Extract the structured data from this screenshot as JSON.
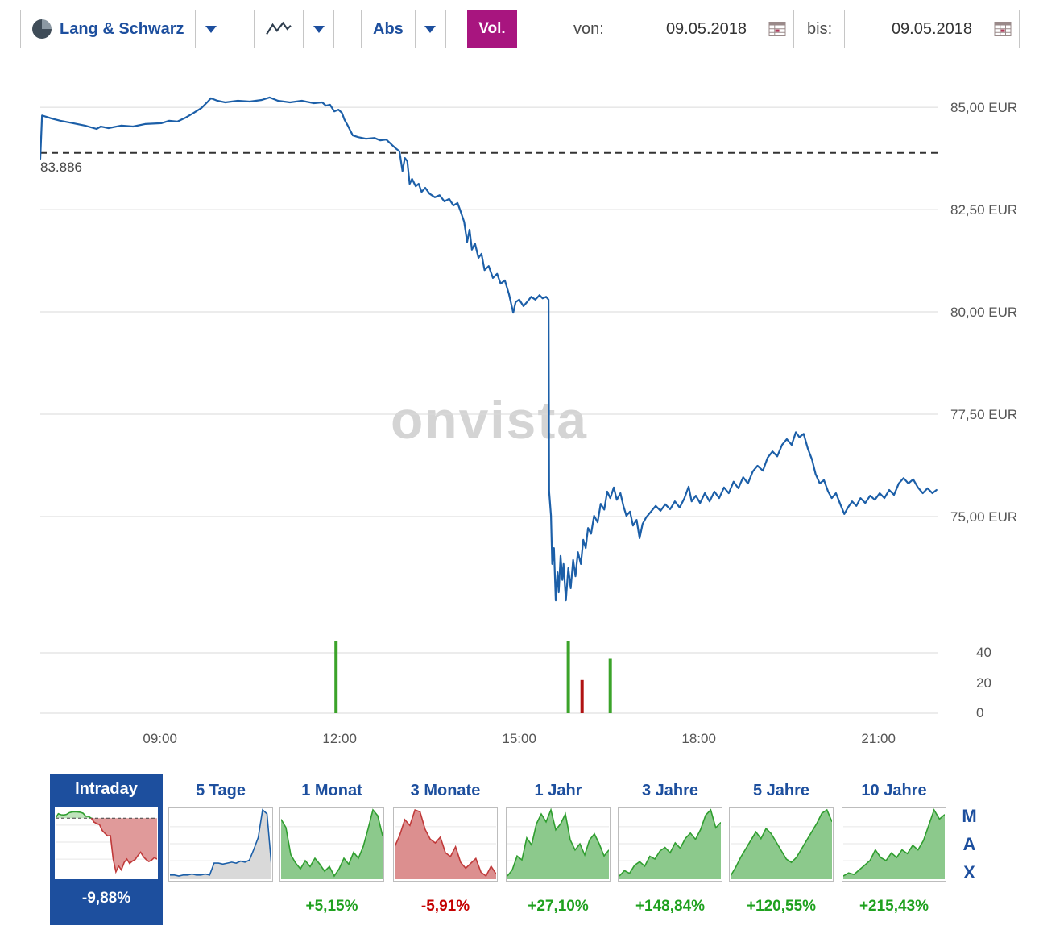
{
  "toolbar": {
    "exchange": {
      "label": "Lang & Schwarz"
    },
    "scale_mode": {
      "label": "Abs"
    },
    "volume_button": {
      "label": "Vol."
    },
    "date_range": {
      "von_label": "von:",
      "bis_label": "bis:",
      "from": "09.05.2018",
      "to": "09.05.2018"
    }
  },
  "watermark": "onvista",
  "max_label": "MAX",
  "colors": {
    "line": "#1c5fa8",
    "grid": "#dadada",
    "ref": "#333333",
    "vol_up": "#3ba32a",
    "vol_down": "#b01212",
    "accent": "#1d4f9e",
    "magenta": "#a8157f",
    "pct_up": "#1fa11f",
    "pct_down": "#c40000",
    "watermark": "#d4d4d4"
  },
  "chart_data": {
    "type": "line",
    "unit": "EUR",
    "x_domain": [
      7.0,
      22.0
    ],
    "y_domain": [
      72.46,
      85.75
    ],
    "y_gridlines": [
      85,
      82.5,
      80,
      77.5,
      75
    ],
    "y_labels": [
      "85,00 EUR",
      "82,50 EUR",
      "80,00 EUR",
      "77,50 EUR",
      "75,00 EUR"
    ],
    "x_ticks": [
      9,
      12,
      15,
      18,
      21
    ],
    "x_labels": [
      "09:00",
      "12:00",
      "15:00",
      "18:00",
      "21:00"
    ],
    "previous_close": 83.886,
    "previous_close_label": "83.886",
    "series": [
      [
        7.0,
        83.74
      ],
      [
        7.03,
        84.8
      ],
      [
        7.2,
        84.72
      ],
      [
        7.34,
        84.67
      ],
      [
        7.55,
        84.61
      ],
      [
        7.75,
        84.55
      ],
      [
        7.94,
        84.47
      ],
      [
        8.01,
        84.53
      ],
      [
        8.14,
        84.49
      ],
      [
        8.35,
        84.55
      ],
      [
        8.55,
        84.53
      ],
      [
        8.75,
        84.59
      ],
      [
        9.02,
        84.61
      ],
      [
        9.15,
        84.67
      ],
      [
        9.29,
        84.65
      ],
      [
        9.42,
        84.74
      ],
      [
        9.56,
        84.86
      ],
      [
        9.69,
        84.98
      ],
      [
        9.8,
        85.14
      ],
      [
        9.85,
        85.22
      ],
      [
        9.96,
        85.16
      ],
      [
        10.09,
        85.12
      ],
      [
        10.3,
        85.16
      ],
      [
        10.5,
        85.14
      ],
      [
        10.7,
        85.18
      ],
      [
        10.83,
        85.24
      ],
      [
        10.97,
        85.16
      ],
      [
        11.17,
        85.12
      ],
      [
        11.37,
        85.16
      ],
      [
        11.57,
        85.1
      ],
      [
        11.71,
        85.12
      ],
      [
        11.77,
        85.04
      ],
      [
        11.84,
        85.06
      ],
      [
        11.91,
        84.9
      ],
      [
        11.98,
        84.94
      ],
      [
        12.04,
        84.86
      ],
      [
        12.08,
        84.7
      ],
      [
        12.13,
        84.57
      ],
      [
        12.22,
        84.31
      ],
      [
        12.31,
        84.27
      ],
      [
        12.44,
        84.23
      ],
      [
        12.58,
        84.25
      ],
      [
        12.68,
        84.19
      ],
      [
        12.78,
        84.21
      ],
      [
        12.88,
        84.07
      ],
      [
        12.95,
        83.98
      ],
      [
        13.0,
        83.92
      ],
      [
        13.05,
        83.44
      ],
      [
        13.09,
        83.76
      ],
      [
        13.13,
        83.68
      ],
      [
        13.17,
        83.13
      ],
      [
        13.21,
        83.25
      ],
      [
        13.27,
        83.07
      ],
      [
        13.32,
        83.13
      ],
      [
        13.37,
        82.93
      ],
      [
        13.43,
        83.03
      ],
      [
        13.5,
        82.89
      ],
      [
        13.59,
        82.8
      ],
      [
        13.67,
        82.85
      ],
      [
        13.75,
        82.7
      ],
      [
        13.83,
        82.76
      ],
      [
        13.9,
        82.6
      ],
      [
        13.97,
        82.66
      ],
      [
        14.02,
        82.46
      ],
      [
        14.08,
        82.2
      ],
      [
        14.13,
        81.71
      ],
      [
        14.17,
        82.01
      ],
      [
        14.21,
        81.52
      ],
      [
        14.26,
        81.67
      ],
      [
        14.32,
        81.32
      ],
      [
        14.37,
        81.42
      ],
      [
        14.42,
        81.02
      ],
      [
        14.49,
        81.12
      ],
      [
        14.56,
        80.83
      ],
      [
        14.63,
        80.93
      ],
      [
        14.69,
        80.69
      ],
      [
        14.76,
        80.77
      ],
      [
        14.83,
        80.43
      ],
      [
        14.9,
        79.98
      ],
      [
        14.94,
        80.24
      ],
      [
        15.0,
        80.3
      ],
      [
        15.07,
        80.14
      ],
      [
        15.13,
        80.24
      ],
      [
        15.2,
        80.37
      ],
      [
        15.27,
        80.3
      ],
      [
        15.34,
        80.41
      ],
      [
        15.39,
        80.33
      ],
      [
        15.45,
        80.37
      ],
      [
        15.49,
        80.3
      ],
      [
        15.5,
        75.61
      ],
      [
        15.53,
        75.02
      ],
      [
        15.55,
        73.84
      ],
      [
        15.58,
        74.23
      ],
      [
        15.61,
        72.95
      ],
      [
        15.64,
        73.64
      ],
      [
        15.66,
        73.15
      ],
      [
        15.69,
        74.04
      ],
      [
        15.72,
        73.45
      ],
      [
        15.74,
        73.84
      ],
      [
        15.78,
        72.95
      ],
      [
        15.82,
        73.74
      ],
      [
        15.86,
        73.25
      ],
      [
        15.9,
        73.94
      ],
      [
        15.94,
        73.54
      ],
      [
        15.98,
        74.13
      ],
      [
        16.03,
        73.84
      ],
      [
        16.07,
        74.43
      ],
      [
        16.11,
        74.23
      ],
      [
        16.15,
        74.72
      ],
      [
        16.2,
        74.58
      ],
      [
        16.25,
        75.02
      ],
      [
        16.31,
        74.86
      ],
      [
        16.36,
        75.31
      ],
      [
        16.42,
        75.17
      ],
      [
        16.47,
        75.61
      ],
      [
        16.52,
        75.45
      ],
      [
        16.58,
        75.71
      ],
      [
        16.63,
        75.41
      ],
      [
        16.69,
        75.57
      ],
      [
        16.74,
        75.26
      ],
      [
        16.79,
        75.02
      ],
      [
        16.85,
        75.12
      ],
      [
        16.9,
        74.78
      ],
      [
        16.96,
        74.92
      ],
      [
        17.01,
        74.47
      ],
      [
        17.06,
        74.82
      ],
      [
        17.12,
        74.98
      ],
      [
        17.2,
        75.12
      ],
      [
        17.28,
        75.26
      ],
      [
        17.36,
        75.14
      ],
      [
        17.44,
        75.3
      ],
      [
        17.52,
        75.18
      ],
      [
        17.6,
        75.37
      ],
      [
        17.68,
        75.22
      ],
      [
        17.76,
        75.45
      ],
      [
        17.83,
        75.73
      ],
      [
        17.88,
        75.37
      ],
      [
        17.95,
        75.51
      ],
      [
        18.02,
        75.33
      ],
      [
        18.1,
        75.57
      ],
      [
        18.18,
        75.37
      ],
      [
        18.26,
        75.61
      ],
      [
        18.34,
        75.45
      ],
      [
        18.42,
        75.71
      ],
      [
        18.5,
        75.57
      ],
      [
        18.58,
        75.85
      ],
      [
        18.66,
        75.69
      ],
      [
        18.74,
        75.96
      ],
      [
        18.82,
        75.81
      ],
      [
        18.9,
        76.1
      ],
      [
        18.98,
        76.24
      ],
      [
        19.07,
        76.12
      ],
      [
        19.15,
        76.44
      ],
      [
        19.23,
        76.59
      ],
      [
        19.31,
        76.47
      ],
      [
        19.39,
        76.75
      ],
      [
        19.47,
        76.89
      ],
      [
        19.55,
        76.75
      ],
      [
        19.62,
        77.06
      ],
      [
        19.68,
        76.94
      ],
      [
        19.75,
        77.02
      ],
      [
        19.82,
        76.66
      ],
      [
        19.89,
        76.39
      ],
      [
        19.95,
        76.04
      ],
      [
        20.02,
        75.81
      ],
      [
        20.09,
        75.89
      ],
      [
        20.16,
        75.61
      ],
      [
        20.22,
        75.45
      ],
      [
        20.29,
        75.57
      ],
      [
        20.36,
        75.31
      ],
      [
        20.43,
        75.06
      ],
      [
        20.49,
        75.22
      ],
      [
        20.56,
        75.37
      ],
      [
        20.63,
        75.26
      ],
      [
        20.7,
        75.45
      ],
      [
        20.78,
        75.33
      ],
      [
        20.86,
        75.51
      ],
      [
        20.94,
        75.41
      ],
      [
        21.02,
        75.57
      ],
      [
        21.1,
        75.45
      ],
      [
        21.18,
        75.65
      ],
      [
        21.26,
        75.53
      ],
      [
        21.34,
        75.81
      ],
      [
        21.42,
        75.94
      ],
      [
        21.5,
        75.81
      ],
      [
        21.58,
        75.91
      ],
      [
        21.66,
        75.71
      ],
      [
        21.74,
        75.57
      ],
      [
        21.82,
        75.69
      ],
      [
        21.9,
        75.57
      ],
      [
        21.97,
        75.65
      ]
    ],
    "volume": {
      "domain": [
        0,
        58.7
      ],
      "gridlines": [
        40,
        20,
        0
      ],
      "labels": [
        "40",
        "20",
        "0"
      ],
      "bars": [
        {
          "t": 11.94,
          "v": 48,
          "dir": "up"
        },
        {
          "t": 15.82,
          "v": 48,
          "dir": "up"
        },
        {
          "t": 16.05,
          "v": 22,
          "dir": "down"
        },
        {
          "t": 16.52,
          "v": 36,
          "dir": "up"
        }
      ]
    }
  },
  "ranges": [
    {
      "label": "Intraday",
      "percent": "-9,88%",
      "selected": true,
      "spark": {
        "ref": 83.886,
        "range": [
          72.5,
          85.9
        ],
        "values": [
          83.9,
          84.8,
          84.6,
          84.55,
          84.65,
          85.0,
          85.15,
          85.2,
          85.15,
          85.1,
          84.9,
          84.3,
          84.25,
          83.9,
          83.1,
          82.8,
          82.6,
          81.4,
          80.8,
          80.3,
          80.35,
          75.6,
          73.0,
          74.2,
          73.4,
          74.9,
          75.6,
          74.7,
          75.2,
          75.5,
          76.3,
          77.0,
          76.1,
          75.5,
          75.1,
          75.4,
          75.9,
          75.6
        ],
        "up_fill": "#bfe3bb",
        "up_line": "#2f9e2f",
        "down_fill": "#e09a9a",
        "down_line": "#c03a3a"
      }
    },
    {
      "label": "5 Tage",
      "percent": "",
      "spark": {
        "fill": "#d9d9d9",
        "line": "#1c5fa8",
        "values": [
          22,
          22,
          21,
          22,
          22,
          23,
          22,
          22,
          23,
          22,
          34,
          34,
          33,
          34,
          35,
          34,
          36,
          35,
          37,
          48,
          60,
          88,
          84,
          32
        ]
      }
    },
    {
      "label": "1 Monat",
      "percent": "+5,15%",
      "spark": {
        "fill": "#8cc98c",
        "line": "#2f9e2f",
        "values": [
          82,
          75,
          52,
          45,
          40,
          47,
          42,
          49,
          44,
          38,
          42,
          34,
          40,
          49,
          44,
          54,
          49,
          59,
          74,
          90,
          85,
          68
        ]
      }
    },
    {
      "label": "3 Monate",
      "percent": "-5,91%",
      "spark": {
        "fill": "#dc8f8f",
        "line": "#c03a3a",
        "values": [
          50,
          62,
          78,
          72,
          88,
          86,
          68,
          58,
          54,
          60,
          44,
          40,
          50,
          34,
          28,
          33,
          38,
          24,
          20,
          30,
          22
        ]
      }
    },
    {
      "label": "1 Jahr",
      "percent": "+27,10%",
      "spark": {
        "fill": "#8cc98c",
        "line": "#2f9e2f",
        "values": [
          24,
          30,
          44,
          40,
          62,
          55,
          76,
          86,
          78,
          90,
          70,
          76,
          86,
          60,
          50,
          56,
          45,
          60,
          66,
          56,
          44,
          50
        ]
      }
    },
    {
      "label": "3 Jahre",
      "percent": "+148,84%",
      "spark": {
        "fill": "#8cc98c",
        "line": "#2f9e2f",
        "values": [
          18,
          24,
          21,
          30,
          34,
          29,
          40,
          37,
          46,
          50,
          44,
          55,
          49,
          60,
          66,
          59,
          70,
          86,
          92,
          72,
          78
        ]
      }
    },
    {
      "label": "5 Jahre",
      "percent": "+120,55%",
      "spark": {
        "fill": "#8cc98c",
        "line": "#2f9e2f",
        "values": [
          14,
          24,
          36,
          46,
          56,
          66,
          58,
          70,
          64,
          54,
          44,
          34,
          30,
          36,
          46,
          56,
          66,
          76,
          88,
          92,
          78
        ]
      }
    },
    {
      "label": "10 Jahre",
      "percent": "+215,43%",
      "spark": {
        "fill": "#8cc98c",
        "line": "#2f9e2f",
        "values": [
          10,
          14,
          12,
          18,
          24,
          30,
          44,
          34,
          30,
          40,
          34,
          44,
          39,
          50,
          44,
          56,
          76,
          96,
          84,
          90
        ]
      }
    }
  ]
}
